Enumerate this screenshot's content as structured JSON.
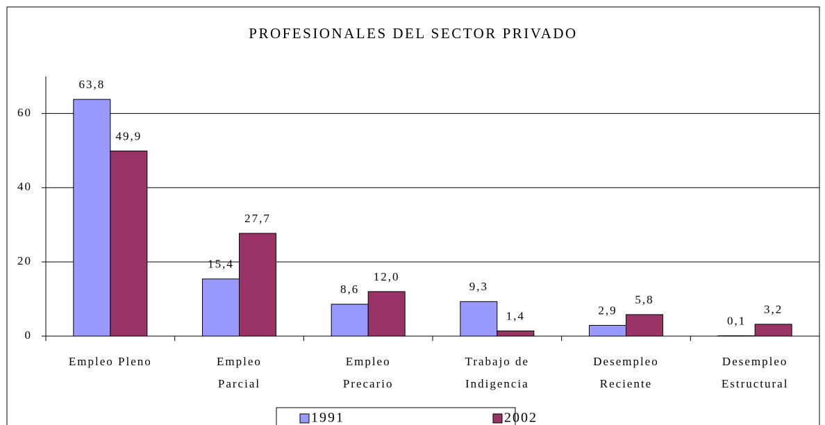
{
  "chart_data": {
    "type": "bar",
    "title": "PROFESIONALES DEL SECTOR PRIVADO",
    "categories": [
      [
        "Empleo Pleno"
      ],
      [
        "Empleo",
        "Parcial"
      ],
      [
        "Empleo",
        "Precario"
      ],
      [
        "Trabajo de",
        "Indigencia"
      ],
      [
        "Desempleo",
        "Reciente"
      ],
      [
        "Desempleo",
        "Estructural"
      ]
    ],
    "series": [
      {
        "name": "1991",
        "color": "#9999ff",
        "values": [
          63.8,
          15.4,
          8.6,
          9.3,
          2.9,
          0.1
        ],
        "value_labels": [
          "63,8",
          "15,4",
          "8,6",
          "9,3",
          "2,9",
          "0,1"
        ]
      },
      {
        "name": "2002",
        "color": "#993366",
        "values": [
          49.9,
          27.7,
          12.0,
          1.4,
          5.8,
          3.2
        ],
        "value_labels": [
          "49,9",
          "27,7",
          "12,0",
          "1,4",
          "5,8",
          "3,2"
        ]
      }
    ],
    "ylim": [
      0,
      70
    ],
    "yticks": [
      0,
      20,
      40,
      60
    ],
    "grid": true,
    "legend": "bottom"
  }
}
